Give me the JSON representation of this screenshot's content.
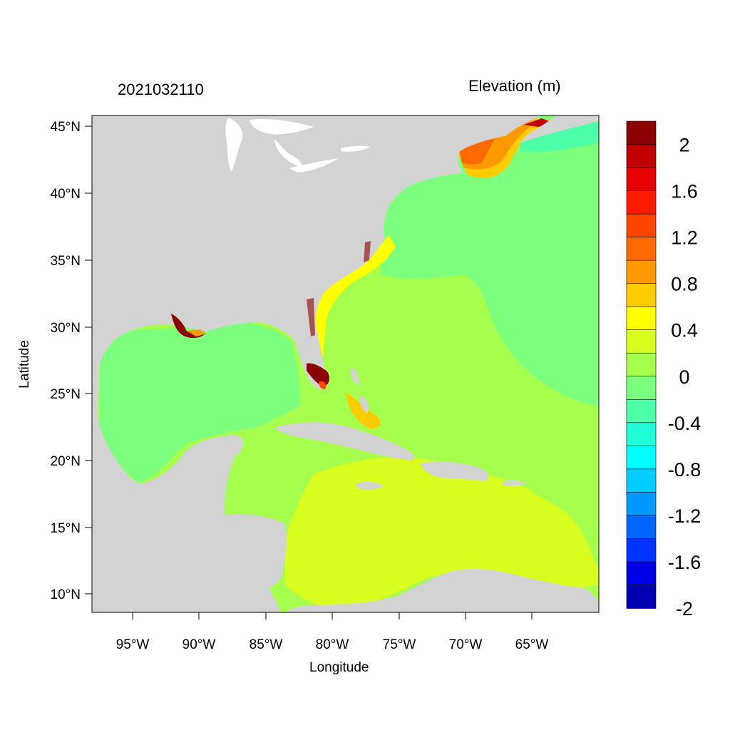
{
  "map": {
    "timestamp": "2021032110",
    "variable_title": "Elevation (m)",
    "x_axis_label": "Longitude",
    "y_axis_label": "Latitude",
    "lon_ticks": [
      "95°W",
      "90°W",
      "85°W",
      "80°W",
      "75°W",
      "70°W",
      "65°W"
    ],
    "lat_ticks": [
      "45°N",
      "40°N",
      "35°N",
      "30°N",
      "25°N",
      "20°N",
      "15°N",
      "10°N"
    ],
    "land_color": "#d3d3d3",
    "lake_color": "#ffffff"
  },
  "colorbar": {
    "labels": [
      "2",
      "1.6",
      "1.2",
      "0.8",
      "0.4",
      "0",
      "-0.4",
      "-0.8",
      "-1.2",
      "-1.6",
      "-2"
    ],
    "colors": [
      "#8b0000",
      "#c00000",
      "#e60000",
      "#ff1a00",
      "#ff4500",
      "#ff6a00",
      "#ff9900",
      "#ffcc00",
      "#ffff00",
      "#d8ff20",
      "#a6ff4d",
      "#7cff7c",
      "#4dffa6",
      "#20ffd8",
      "#00ffff",
      "#00ccff",
      "#0099ff",
      "#0066ff",
      "#0033ff",
      "#0000e6",
      "#0000b3"
    ]
  }
}
